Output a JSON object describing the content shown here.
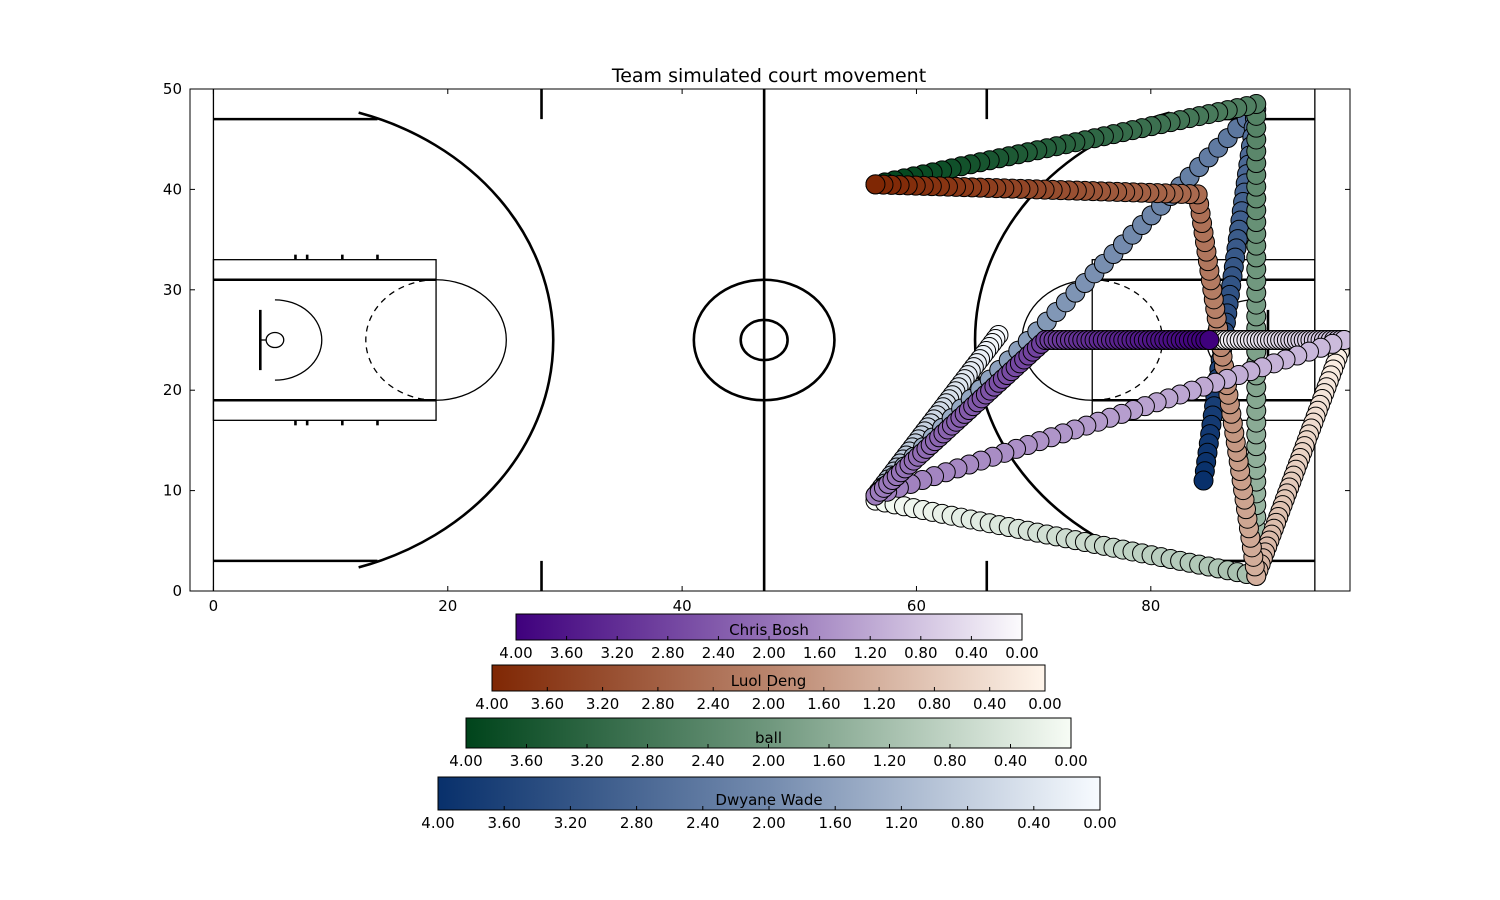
{
  "chart_data": {
    "type": "scatter",
    "title": "Team simulated court movement",
    "xlabel": "",
    "ylabel": "",
    "xlim": [
      -2,
      97
    ],
    "ylim": [
      0,
      50
    ],
    "x_ticks": [
      "0",
      "20",
      "40",
      "60",
      "80"
    ],
    "y_ticks": [
      "0",
      "10",
      "20",
      "30",
      "40",
      "50"
    ],
    "background": "basketball full court diagram",
    "series": [
      {
        "name": "Chris Bosh",
        "colormap": "Purples",
        "color_dark": "#3f007d",
        "color_light": "#fcfbfd",
        "colorbar_ticks": [
          "4.00",
          "3.60",
          "3.20",
          "2.80",
          "2.40",
          "2.00",
          "1.60",
          "1.20",
          "0.80",
          "0.40",
          "0.00"
        ],
        "path": [
          [
            85,
            25
          ],
          [
            71,
            25
          ],
          [
            56.5,
            9.5
          ],
          [
            96.5,
            25
          ],
          [
            85,
            25
          ]
        ]
      },
      {
        "name": "Luol Deng",
        "colormap": "Oranges",
        "color_dark": "#7f2704",
        "color_light": "#fff5eb",
        "colorbar_ticks": [
          "4.00",
          "3.60",
          "3.20",
          "2.80",
          "2.40",
          "2.00",
          "1.60",
          "1.20",
          "0.80",
          "0.40",
          "0.00"
        ],
        "path": [
          [
            56.5,
            40.5
          ],
          [
            84,
            39.5
          ],
          [
            89,
            1.5
          ],
          [
            96.5,
            25
          ]
        ]
      },
      {
        "name": "ball",
        "colormap": "Greens",
        "color_dark": "#00441b",
        "color_light": "#f7fcf5",
        "colorbar_ticks": [
          "4.00",
          "3.60",
          "3.20",
          "2.80",
          "2.40",
          "2.00",
          "1.60",
          "1.20",
          "0.80",
          "0.40",
          "0.00"
        ],
        "path": [
          [
            56.5,
            40.5
          ],
          [
            89,
            48.5
          ],
          [
            89,
            1.5
          ],
          [
            56.5,
            9
          ]
        ]
      },
      {
        "name": "Dwyane Wade",
        "colormap": "Blues",
        "color_dark": "#08306b",
        "color_light": "#f7fbff",
        "colorbar_ticks": [
          "4.00",
          "3.60",
          "3.20",
          "2.80",
          "2.40",
          "2.00",
          "1.60",
          "1.20",
          "0.80",
          "0.40",
          "0.00"
        ],
        "path": [
          [
            84.5,
            11
          ],
          [
            89,
            48
          ],
          [
            56.5,
            9.5
          ],
          [
            67,
            25.5
          ]
        ]
      }
    ]
  }
}
